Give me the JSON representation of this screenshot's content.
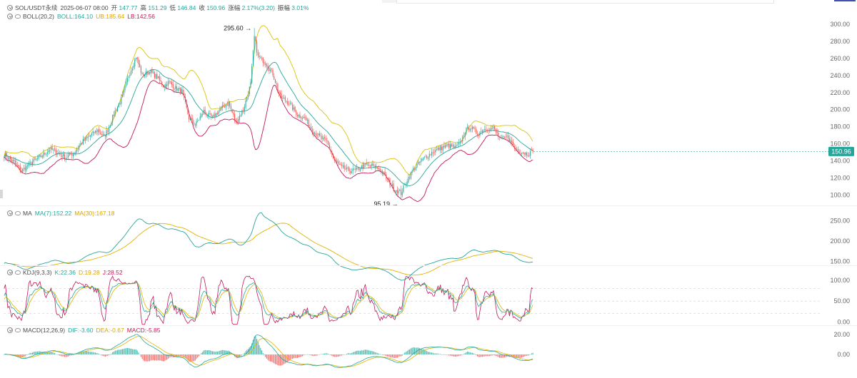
{
  "header": {
    "symbol": "SOL/USDT永续",
    "datetime": "2025-06-07 08:00",
    "open_label": "开",
    "open_value": "147.77",
    "high_label": "高",
    "high_value": "151.29",
    "low_label": "低",
    "low_value": "146.84",
    "close_label": "收",
    "close_value": "150.96",
    "change_label": "涨幅",
    "change_value": "2.17%(3.20)",
    "amplitude_label": "振幅",
    "amplitude_value": "3.01%"
  },
  "boll_legend": {
    "name": "BOLL(20,2)",
    "mid": "BOLL:164.10",
    "ub": "UB:185.64",
    "lb": "LB:142.56"
  },
  "ma_legend": {
    "name": "MA",
    "ma7": "MA(7):152.22",
    "ma30": "MA(30):167.18"
  },
  "kdj_legend": {
    "name": "KDJ(9,3,3)",
    "k": "K:22.36",
    "d": "D:19.28",
    "j": "J:28.52"
  },
  "macd_legend": {
    "name": "MACD(12,26,9)",
    "dif": "DIF:-3.60",
    "dea": "DEA:-0.67",
    "macd": "MACD:-5.85"
  },
  "colors": {
    "up": "#26a69a",
    "down": "#ef5350",
    "mid": "#26a69a",
    "ub": "#d9c40a",
    "lb": "#c2185b",
    "ma7": "#26a69a",
    "ma30": "#e0b300"
  },
  "chart_data": [
    {
      "type": "candlestick",
      "name": "SOL/USDT",
      "ylim": [
        92,
        305
      ],
      "yticks": [
        "300.00",
        "280.00",
        "260.00",
        "240.00",
        "220.00",
        "200.00",
        "180.00",
        "160.00",
        "140.00",
        "120.00",
        "100.00"
      ],
      "ytick_values": [
        300,
        280,
        260,
        240,
        220,
        200,
        180,
        160,
        140,
        120,
        100
      ],
      "last_price": "150.96",
      "last_price_value": 150.96,
      "max_label": "295.60",
      "max_value": 295.6,
      "min_label": "95.19",
      "min_value": 95.19,
      "close_anchors": [
        [
          0,
          148
        ],
        [
          8,
          138
        ],
        [
          14,
          128
        ],
        [
          22,
          138
        ],
        [
          30,
          145
        ],
        [
          37,
          154
        ],
        [
          43,
          150
        ],
        [
          50,
          144
        ],
        [
          57,
          150
        ],
        [
          63,
          162
        ],
        [
          70,
          170
        ],
        [
          76,
          176
        ],
        [
          81,
          168
        ],
        [
          85,
          180
        ],
        [
          90,
          198
        ],
        [
          96,
          215
        ],
        [
          101,
          240
        ],
        [
          107,
          262
        ],
        [
          112,
          240
        ],
        [
          118,
          245
        ],
        [
          124,
          238
        ],
        [
          129,
          228
        ],
        [
          134,
          232
        ],
        [
          139,
          225
        ],
        [
          144,
          222
        ],
        [
          150,
          190
        ],
        [
          155,
          182
        ],
        [
          162,
          198
        ],
        [
          169,
          190
        ],
        [
          175,
          200
        ],
        [
          182,
          208
        ],
        [
          188,
          185
        ],
        [
          194,
          200
        ],
        [
          200,
          230
        ],
        [
          203,
          285
        ],
        [
          206,
          262
        ],
        [
          212,
          255
        ],
        [
          218,
          242
        ],
        [
          224,
          215
        ],
        [
          231,
          208
        ],
        [
          238,
          194
        ],
        [
          244,
          190
        ],
        [
          250,
          176
        ],
        [
          256,
          168
        ],
        [
          262,
          162
        ],
        [
          268,
          140
        ],
        [
          274,
          132
        ],
        [
          281,
          128
        ],
        [
          287,
          130
        ],
        [
          293,
          135
        ],
        [
          299,
          134
        ],
        [
          305,
          130
        ],
        [
          311,
          118
        ],
        [
          316,
          108
        ],
        [
          322,
          102
        ],
        [
          327,
          118
        ],
        [
          333,
          132
        ],
        [
          340,
          142
        ],
        [
          347,
          150
        ],
        [
          354,
          155
        ],
        [
          360,
          158
        ],
        [
          366,
          155
        ],
        [
          370,
          160
        ],
        [
          374,
          175
        ],
        [
          378,
          180
        ],
        [
          384,
          172
        ],
        [
          391,
          178
        ],
        [
          397,
          178
        ],
        [
          403,
          165
        ],
        [
          409,
          168
        ],
        [
          414,
          155
        ],
        [
          420,
          150
        ],
        [
          425,
          148
        ],
        [
          429,
          151
        ]
      ]
    },
    {
      "type": "line",
      "name": "MA",
      "ylim": [
        130,
        270
      ],
      "yticks": [
        "250.00",
        "200.00",
        "150.00"
      ],
      "ytick_values": [
        250,
        200,
        150
      ]
    },
    {
      "type": "line",
      "name": "KDJ",
      "ylim": [
        -8,
        112
      ],
      "yticks": [
        "100.00",
        "50.00",
        "0.00"
      ],
      "ytick_values": [
        100,
        50,
        0
      ],
      "dashed_levels": [
        80,
        50,
        20
      ]
    },
    {
      "type": "bar",
      "name": "MACD",
      "ylim": [
        -22,
        22
      ],
      "yticks": [
        "20.00",
        "0.00"
      ],
      "ytick_values": [
        20,
        0
      ]
    }
  ]
}
